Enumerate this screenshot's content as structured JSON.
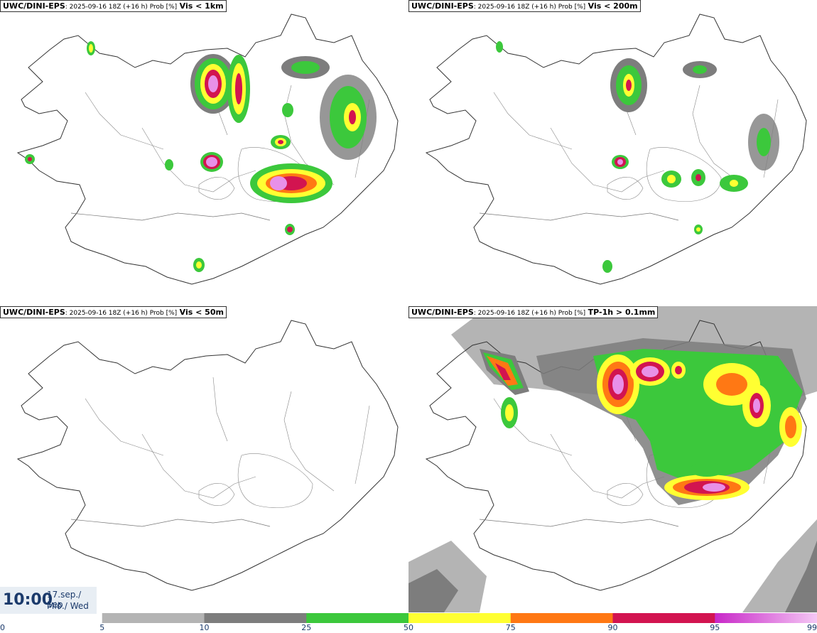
{
  "panels": [
    {
      "model": "UWC/DINI-EPS",
      "run": ": 2025-09-16 18Z (+16 h) Prob [%]",
      "variable": "Vis < 1km"
    },
    {
      "model": "UWC/DINI-EPS",
      "run": ": 2025-09-16 18Z (+16 h) Prob [%]",
      "variable": "Vis < 200m"
    },
    {
      "model": "UWC/DINI-EPS",
      "run": ": 2025-09-16 18Z (+16 h) Prob [%]",
      "variable": "Vis < 50m"
    },
    {
      "model": "UWC/DINI-EPS",
      "run": ": 2025-09-16 18Z (+16 h) Prob [%]",
      "variable": "TP-1h > 0.1mm"
    }
  ],
  "valid_time": {
    "time": "10:00",
    "date": "17.sep./ Sep",
    "weekday": "Mið./ Wed"
  },
  "colorbar": {
    "bins": [
      {
        "from": 0,
        "to": 5,
        "color": "#ffffff"
      },
      {
        "from": 5,
        "to": 10,
        "color": "#b4b4b4"
      },
      {
        "from": 10,
        "to": 25,
        "color": "#7d7d7d"
      },
      {
        "from": 25,
        "to": 50,
        "color": "#3cc83c"
      },
      {
        "from": 50,
        "to": 75,
        "color": "#ffff32"
      },
      {
        "from": 75,
        "to": 90,
        "color": "#ff7814"
      },
      {
        "from": 90,
        "to": 95,
        "color": "#d21450"
      },
      {
        "from": 95,
        "to": 99,
        "color": "#c828c8"
      }
    ],
    "tick_labels": [
      "0",
      "5",
      "10",
      "25",
      "50",
      "75",
      "90",
      "95",
      "99"
    ]
  },
  "colors": {
    "coast": "#333333",
    "rivers": "#666666",
    "text": "#1b3a6b"
  }
}
